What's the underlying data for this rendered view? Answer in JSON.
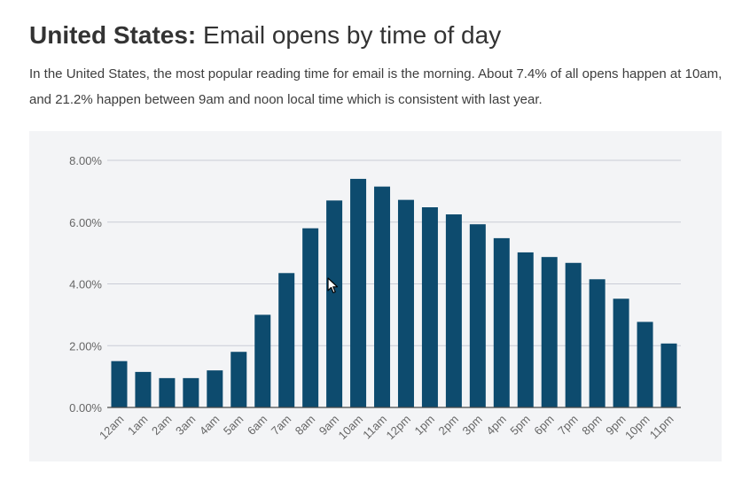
{
  "header": {
    "title_bold": "United States:",
    "title_rest": "Email opens by time of day",
    "description": "In the United States, the most popular reading time for email is the morning. About 7.4% of all opens happen at 10am, and 21.2% happen between 9am and noon local time which is consistent with last year."
  },
  "colors": {
    "bar": "#0d4b6e",
    "grid": "#c9ccd6",
    "axis": "#4a4a4a",
    "panel_bg": "#f3f4f6",
    "tick_text": "#666666"
  },
  "chart_data": {
    "type": "bar",
    "title": "",
    "xlabel": "",
    "ylabel": "",
    "ylim": [
      0,
      8
    ],
    "yticks": [
      0,
      2,
      4,
      6,
      8
    ],
    "ytick_labels": [
      "0.00%",
      "2.00%",
      "4.00%",
      "6.00%",
      "8.00%"
    ],
    "grid": true,
    "categories": [
      "12am",
      "1am",
      "2am",
      "3am",
      "4am",
      "5am",
      "6am",
      "7am",
      "8am",
      "9am",
      "10am",
      "11am",
      "12pm",
      "1pm",
      "2pm",
      "3pm",
      "4pm",
      "5pm",
      "6pm",
      "7pm",
      "8pm",
      "9pm",
      "10pm",
      "11pm"
    ],
    "values": [
      1.5,
      1.15,
      0.95,
      0.95,
      1.2,
      1.8,
      3.0,
      4.35,
      5.8,
      6.7,
      7.4,
      7.15,
      6.72,
      6.48,
      6.25,
      5.93,
      5.48,
      5.02,
      4.87,
      4.68,
      4.15,
      3.52,
      2.77,
      2.07
    ]
  }
}
